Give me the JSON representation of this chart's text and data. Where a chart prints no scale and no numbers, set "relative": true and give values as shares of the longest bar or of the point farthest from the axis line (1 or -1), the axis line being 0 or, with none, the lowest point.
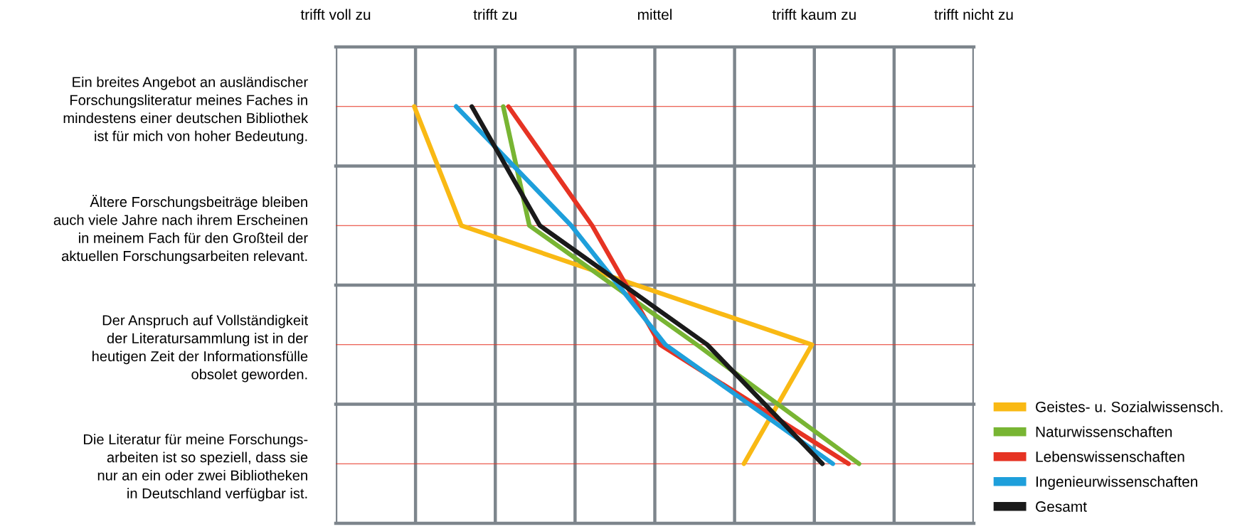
{
  "chart_data": {
    "type": "line",
    "orientation": "horizontal",
    "relative": true,
    "categories": [
      "Ein breites Angebot an ausländischer\nForschungsliteratur meines Faches in\nmindestens einer deutschen Bibliothek\nist für mich von hoher Bedeutung.",
      "Ältere Forschungsbeiträge bleiben\nauch viele Jahre nach ihrem Erscheinen\nin meinem Fach für den Großteil der\naktuellen Forschungsarbeiten relevant.",
      "Der Anspruch auf Vollständigkeit\nder Literatursammlung ist in der\nheutigen Zeit der Informationsfülle\nobsolet geworden.",
      "Die Literatur für meine Forschungs-\narbeiten ist so speziell, dass sie\nnur an ein oder zwei Bibliotheken\nin Deutschland verfügbar ist."
    ],
    "series": [
      {
        "name": "Geistes- u. Sozialwissensch.",
        "color": "#f9b914",
        "values": [
          0.15,
          0.24,
          0.91,
          0.78
        ]
      },
      {
        "name": "Naturwissenschaften",
        "color": "#78b533",
        "values": [
          0.32,
          0.37,
          0.69,
          1
        ]
      },
      {
        "name": "Lebenswissenschaften",
        "color": "#e63323",
        "values": [
          0.33,
          0.49,
          0.62,
          0.98
        ]
      },
      {
        "name": "Ingenieurwissenschaften",
        "color": "#1e9fdb",
        "values": [
          0.23,
          0.45,
          0.63,
          0.95
        ]
      },
      {
        "name": "Gesamt",
        "color": "#1a1a1a",
        "values": [
          0.26,
          0.39,
          0.71,
          0.93
        ]
      }
    ],
    "annotations": [
      "trifft voll zu",
      "trifft zu",
      "mittel",
      "trifft kaum zu",
      "trifft nicht zu"
    ],
    "grid": true,
    "legend": "right",
    "marker": "none",
    "line_style": "solid"
  }
}
